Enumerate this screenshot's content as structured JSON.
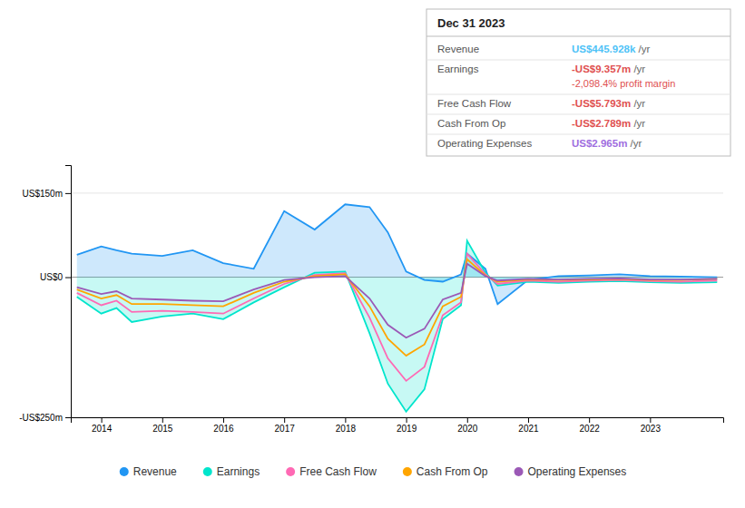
{
  "chart_data": {
    "type": "line",
    "title": "Dec 31 2023",
    "annotations": [
      {
        "label": "Revenue",
        "value": "US$445.928k",
        "suffix": " /yr",
        "color": "#4fc3f7"
      },
      {
        "label": "Earnings",
        "value": "-US$9.357m",
        "suffix": " /yr",
        "color": "#e05050",
        "extra": "-2,098.4% profit margin",
        "extra_color": "#e05050"
      },
      {
        "label": "Free Cash Flow",
        "value": "-US$5.793m",
        "suffix": " /yr",
        "color": "#e05050"
      },
      {
        "label": "Cash From Op",
        "value": "-US$2.789m",
        "suffix": " /yr",
        "color": "#e05050"
      },
      {
        "label": "Operating Expenses",
        "value": "US$2.965m",
        "suffix": " /yr",
        "color": "#a06ee0"
      }
    ],
    "x": [
      2013.6,
      2014.0,
      2014.25,
      2014.5,
      2015.0,
      2015.5,
      2016.0,
      2016.5,
      2017.0,
      2017.5,
      2018.0,
      2018.4,
      2018.7,
      2019.0,
      2019.3,
      2019.6,
      2019.9,
      2020.0,
      2020.3,
      2020.5,
      2021.0,
      2021.5,
      2022.0,
      2022.5,
      2023.0,
      2023.5,
      2024.1
    ],
    "series": [
      {
        "name": "Revenue",
        "type": "area",
        "color": "#2196f3",
        "values": [
          40,
          55,
          48,
          42,
          38,
          48,
          25,
          15,
          118,
          85,
          130,
          125,
          80,
          10,
          -5,
          -8,
          5,
          42,
          15,
          -48,
          -5,
          2,
          3,
          5,
          2,
          1,
          0
        ]
      },
      {
        "name": "Earnings",
        "type": "area",
        "color": "#00e5cc",
        "values": [
          -35,
          -65,
          -55,
          -80,
          -70,
          -65,
          -75,
          -45,
          -18,
          8,
          10,
          -100,
          -190,
          -240,
          -200,
          -75,
          -50,
          65,
          8,
          -15,
          -8,
          -10,
          -8,
          -7,
          -9,
          -10,
          -9
        ]
      },
      {
        "name": "Free Cash Flow",
        "type": "line",
        "color": "#ff69b4",
        "values": [
          -28,
          -50,
          -42,
          -62,
          -60,
          -62,
          -65,
          -38,
          -12,
          4,
          7,
          -72,
          -145,
          -185,
          -160,
          -68,
          -45,
          42,
          5,
          -12,
          -6,
          -8,
          -6,
          -5,
          -7,
          -8,
          -6
        ]
      },
      {
        "name": "Cash From Op",
        "type": "line",
        "color": "#ffa500",
        "values": [
          -22,
          -38,
          -32,
          -48,
          -48,
          -50,
          -52,
          -28,
          -8,
          2,
          5,
          -52,
          -110,
          -140,
          -120,
          -52,
          -35,
          32,
          3,
          -8,
          -4,
          -5,
          -4,
          -3,
          -5,
          -5,
          -3
        ]
      },
      {
        "name": "Operating Expenses",
        "type": "line",
        "color": "#9b59b6",
        "values": [
          -18,
          -30,
          -25,
          -38,
          -40,
          -42,
          -43,
          -22,
          -5,
          0,
          2,
          -38,
          -85,
          -108,
          -92,
          -40,
          -28,
          24,
          2,
          -6,
          -3,
          -4,
          -3,
          -2,
          -4,
          -4,
          -3
        ]
      }
    ],
    "xlim": [
      2013.5,
      2024.2
    ],
    "xticks": [
      2014,
      2015,
      2016,
      2017,
      2018,
      2019,
      2020,
      2021,
      2022,
      2023
    ],
    "ylim": [
      -250,
      200
    ],
    "yticks": [
      {
        "value": -250,
        "label": "-US$250m"
      },
      {
        "value": 0,
        "label": "US$0"
      },
      {
        "value": 150,
        "label": "US$150m"
      }
    ],
    "grid": true,
    "legend": "bottom"
  }
}
